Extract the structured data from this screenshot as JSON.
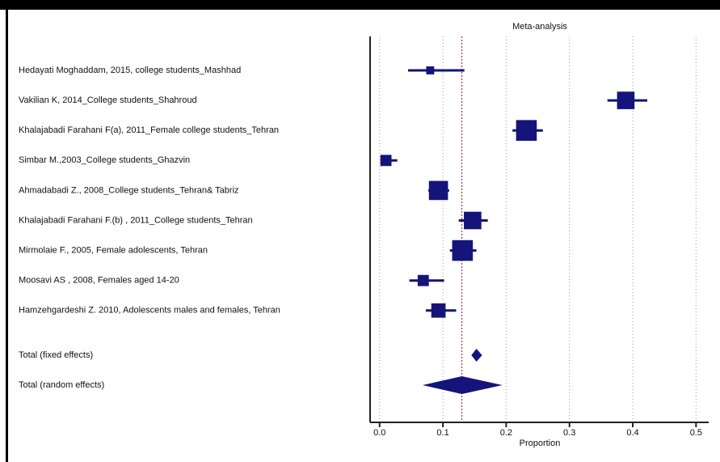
{
  "chart_data": {
    "type": "forest",
    "title": "Meta-analysis",
    "x_label": "Proportion",
    "categories": [
      "Hedayati Moghaddam, 2015, college students_Mashhad",
      "Vakilian K, 2014_College students_Shahroud",
      "Khalajabadi Farahani F(a), 2011_Female college students_Tehran",
      "Simbar M.,2003_College students_Ghazvin",
      "Ahmadabadi Z., 2008_College students_Tehran& Tabriz",
      "Khalajabadi Farahani F.(b) , 2011_College students_Tehran",
      "Mirmolaie F., 2005, Female adolescents, Tehran",
      "Moosavi AS , 2008, Females aged 14-20",
      "Hamzehgardeshi Z. 2010, Adolescents males and females, Tehran"
    ],
    "values": [
      0.08,
      0.389,
      0.232,
      0.01,
      0.093,
      0.147,
      0.131,
      0.069,
      0.093
    ],
    "ci_low": [
      0.045,
      0.36,
      0.21,
      0.003,
      0.077,
      0.125,
      0.111,
      0.047,
      0.073
    ],
    "ci_high": [
      0.134,
      0.423,
      0.258,
      0.028,
      0.11,
      0.171,
      0.153,
      0.102,
      0.121
    ],
    "weights": [
      2.7,
      13.0,
      18.2,
      5.3,
      15.5,
      13.0,
      18.2,
      5.3,
      8.7
    ],
    "pooled": [
      {
        "name": "Total (fixed effects)",
        "estimate": 0.153,
        "ci_low": 0.145,
        "ci_high": 0.162
      },
      {
        "name": "Total (random effects)",
        "estimate": 0.13,
        "ci_low": 0.068,
        "ci_high": 0.194
      }
    ],
    "color": "#14147a",
    "reference_color": "#8b1a2a",
    "xlim": [
      -0.015,
      0.52
    ],
    "xticks": [
      {
        "value": 0,
        "label": "0.0"
      },
      0.1,
      0.2,
      0.3,
      0.4,
      0.5
    ],
    "grid": true
  }
}
